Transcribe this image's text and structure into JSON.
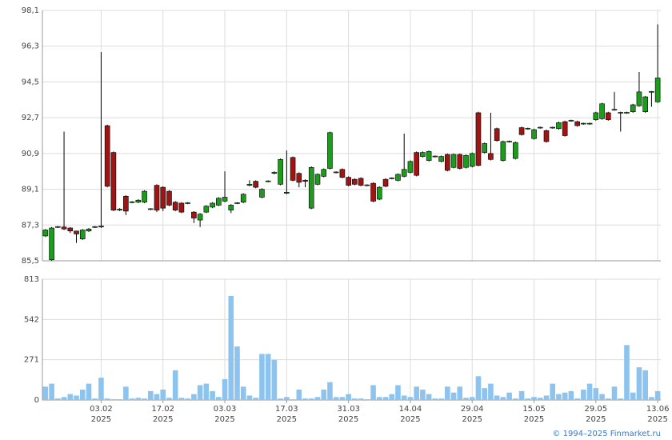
{
  "chart_data": [
    {
      "type": "candlestick",
      "up_color": "#1e9a1e",
      "down_color": "#a01414",
      "grid": true,
      "ylim": [
        85.5,
        98.1
      ],
      "yticks": [
        {
          "value": 85.5,
          "label": "85,5"
        },
        {
          "value": 87.3,
          "label": "87,3"
        },
        {
          "value": 89.1,
          "label": "89,1"
        },
        {
          "value": 90.9,
          "label": "90,9"
        },
        {
          "value": 92.7,
          "label": "92,7"
        },
        {
          "value": 94.5,
          "label": "94,5"
        },
        {
          "value": 96.3,
          "label": "96,3"
        },
        {
          "value": 98.1,
          "label": "98,1"
        }
      ],
      "open": [
        86.75,
        85.55,
        87.2,
        87.2,
        87.15,
        87.0,
        86.6,
        87.0,
        87.2,
        87.2,
        92.3,
        90.95,
        88.05,
        88.75,
        88.45,
        88.45,
        88.45,
        88.1,
        89.3,
        89.2,
        89.0,
        88.45,
        88.4,
        88.4,
        87.95,
        87.55,
        87.95,
        88.2,
        88.3,
        88.5,
        88.05,
        88.4,
        88.45,
        89.3,
        89.5,
        88.7,
        89.5,
        89.9,
        89.35,
        88.9,
        90.7,
        89.9,
        89.55,
        88.15,
        89.35,
        89.75,
        90.15,
        89.95,
        90.1,
        89.7,
        89.6,
        89.65,
        89.3,
        89.4,
        88.6,
        89.6,
        89.65,
        89.55,
        89.75,
        89.95,
        90.95,
        90.75,
        90.55,
        90.75,
        90.5,
        90.85,
        90.2,
        90.85,
        90.2,
        90.25,
        92.95,
        90.95,
        90.9,
        92.15,
        90.55,
        91.5,
        90.65,
        92.2,
        92.15,
        91.65,
        92.2,
        92.05,
        92.2,
        92.15,
        92.5,
        92.55,
        92.5,
        92.4,
        92.4,
        92.6,
        92.65,
        92.95,
        93.1,
        92.95,
        92.95,
        93.0,
        93.3,
        93.0,
        94.0,
        93.5
      ],
      "high": [
        87.1,
        87.2,
        87.25,
        92.0,
        87.2,
        87.0,
        87.1,
        87.15,
        87.25,
        96.0,
        92.35,
        91.0,
        88.15,
        88.8,
        88.5,
        88.6,
        89.05,
        88.15,
        89.35,
        89.25,
        89.05,
        88.5,
        88.45,
        88.45,
        88.0,
        87.9,
        88.3,
        88.45,
        88.7,
        90.0,
        88.35,
        88.45,
        88.9,
        89.55,
        89.55,
        89.15,
        89.55,
        90.0,
        90.65,
        91.05,
        90.75,
        89.95,
        89.6,
        90.25,
        89.9,
        90.15,
        92.0,
        90.0,
        90.15,
        89.75,
        89.65,
        89.7,
        89.35,
        89.45,
        89.25,
        89.65,
        89.7,
        89.9,
        91.9,
        90.55,
        91.0,
        91.0,
        91.05,
        90.8,
        90.8,
        90.9,
        90.9,
        90.9,
        90.85,
        90.95,
        93.0,
        91.45,
        92.95,
        92.2,
        91.55,
        91.55,
        91.5,
        92.25,
        92.2,
        92.15,
        92.25,
        92.1,
        92.25,
        92.5,
        92.55,
        92.6,
        92.55,
        92.45,
        92.45,
        93.0,
        93.45,
        93.0,
        94.0,
        93.0,
        93.0,
        93.4,
        95.0,
        93.8,
        94.05,
        97.4
      ],
      "low": [
        86.7,
        85.5,
        87.15,
        87.05,
        86.9,
        86.4,
        86.55,
        86.95,
        87.15,
        87.15,
        89.2,
        88.0,
        88.0,
        87.8,
        88.4,
        88.4,
        88.4,
        88.05,
        87.95,
        88.0,
        88.25,
        88.0,
        87.9,
        88.35,
        87.4,
        87.2,
        87.9,
        88.15,
        88.25,
        88.45,
        87.9,
        88.35,
        88.4,
        89.25,
        89.15,
        88.65,
        89.45,
        89.85,
        89.3,
        88.85,
        89.5,
        89.2,
        89.2,
        88.1,
        89.3,
        89.7,
        90.1,
        89.9,
        89.65,
        89.25,
        89.3,
        89.25,
        89.25,
        88.45,
        88.55,
        89.2,
        89.6,
        89.5,
        89.7,
        89.9,
        89.75,
        90.7,
        90.5,
        90.7,
        90.45,
        90.0,
        90.15,
        90.1,
        90.15,
        90.2,
        90.25,
        90.9,
        90.55,
        91.5,
        90.5,
        91.45,
        90.6,
        91.8,
        92.1,
        91.6,
        92.15,
        91.45,
        92.15,
        92.1,
        91.75,
        92.5,
        92.25,
        92.35,
        92.35,
        92.55,
        92.6,
        92.55,
        93.05,
        92.0,
        92.9,
        92.95,
        93.25,
        92.95,
        93.25,
        93.45
      ],
      "close": [
        87.05,
        87.15,
        87.22,
        87.1,
        87.0,
        86.85,
        87.05,
        87.1,
        87.22,
        87.25,
        89.25,
        88.05,
        88.1,
        88.0,
        88.47,
        88.55,
        89.0,
        88.12,
        88.05,
        88.15,
        88.3,
        88.05,
        87.95,
        88.42,
        87.65,
        87.85,
        88.25,
        88.4,
        88.65,
        88.7,
        88.3,
        88.42,
        88.85,
        89.35,
        89.2,
        89.1,
        89.52,
        89.95,
        90.6,
        88.95,
        89.55,
        89.45,
        89.5,
        90.2,
        89.85,
        90.1,
        91.95,
        89.97,
        89.7,
        89.3,
        89.35,
        89.3,
        89.32,
        88.5,
        89.2,
        89.25,
        89.67,
        89.85,
        90.1,
        90.5,
        89.8,
        90.95,
        91.0,
        90.77,
        90.75,
        90.05,
        90.85,
        90.15,
        90.8,
        90.9,
        90.3,
        91.4,
        90.6,
        91.55,
        91.5,
        91.52,
        91.45,
        91.85,
        92.17,
        92.1,
        92.22,
        91.5,
        92.22,
        92.45,
        91.8,
        92.57,
        92.3,
        92.42,
        92.42,
        92.95,
        93.4,
        92.6,
        93.12,
        92.97,
        92.97,
        93.35,
        94.0,
        93.75,
        94.02,
        94.7
      ]
    },
    {
      "type": "bar",
      "color": "#8cc4ef",
      "grid": true,
      "ylim": [
        0,
        813
      ],
      "yticks": [
        0,
        271,
        542,
        813
      ],
      "categories": [
        null,
        null,
        null,
        null,
        null,
        null,
        null,
        null,
        null,
        [
          "03.02",
          "2025"
        ],
        null,
        null,
        null,
        null,
        null,
        null,
        null,
        null,
        null,
        [
          "17.02",
          "2025"
        ],
        null,
        null,
        null,
        null,
        null,
        null,
        null,
        null,
        null,
        [
          "03.03",
          "2025"
        ],
        null,
        null,
        null,
        null,
        null,
        null,
        null,
        null,
        null,
        [
          "17.03",
          "2025"
        ],
        null,
        null,
        null,
        null,
        null,
        null,
        null,
        null,
        null,
        [
          "31.03",
          "2025"
        ],
        null,
        null,
        null,
        null,
        null,
        null,
        null,
        null,
        null,
        [
          "14.04",
          "2025"
        ],
        null,
        null,
        null,
        null,
        null,
        null,
        null,
        null,
        null,
        [
          "29.04",
          "2025"
        ],
        null,
        null,
        null,
        null,
        null,
        null,
        null,
        null,
        null,
        [
          "15.05",
          "2025"
        ],
        null,
        null,
        null,
        null,
        null,
        null,
        null,
        null,
        null,
        [
          "29.05",
          "2025"
        ],
        null,
        null,
        null,
        null,
        null,
        null,
        null,
        null,
        null,
        [
          "13.06",
          "2025"
        ]
      ],
      "values": [
        90,
        110,
        10,
        20,
        40,
        30,
        70,
        110,
        10,
        150,
        10,
        5,
        5,
        90,
        10,
        15,
        10,
        60,
        40,
        70,
        15,
        200,
        15,
        10,
        40,
        100,
        110,
        60,
        20,
        140,
        700,
        360,
        90,
        30,
        15,
        310,
        310,
        270,
        10,
        20,
        5,
        70,
        10,
        10,
        20,
        70,
        120,
        20,
        20,
        40,
        10,
        10,
        5,
        100,
        20,
        20,
        40,
        100,
        30,
        20,
        90,
        70,
        40,
        10,
        10,
        90,
        50,
        90,
        15,
        20,
        160,
        80,
        110,
        30,
        20,
        50,
        10,
        60,
        10,
        20,
        15,
        30,
        110,
        40,
        50,
        60,
        10,
        70,
        110,
        80,
        40,
        10,
        90,
        10,
        370,
        50,
        220,
        200,
        20,
        60
      ]
    }
  ],
  "footer": "© 1994–2025 Finmarket.ru"
}
